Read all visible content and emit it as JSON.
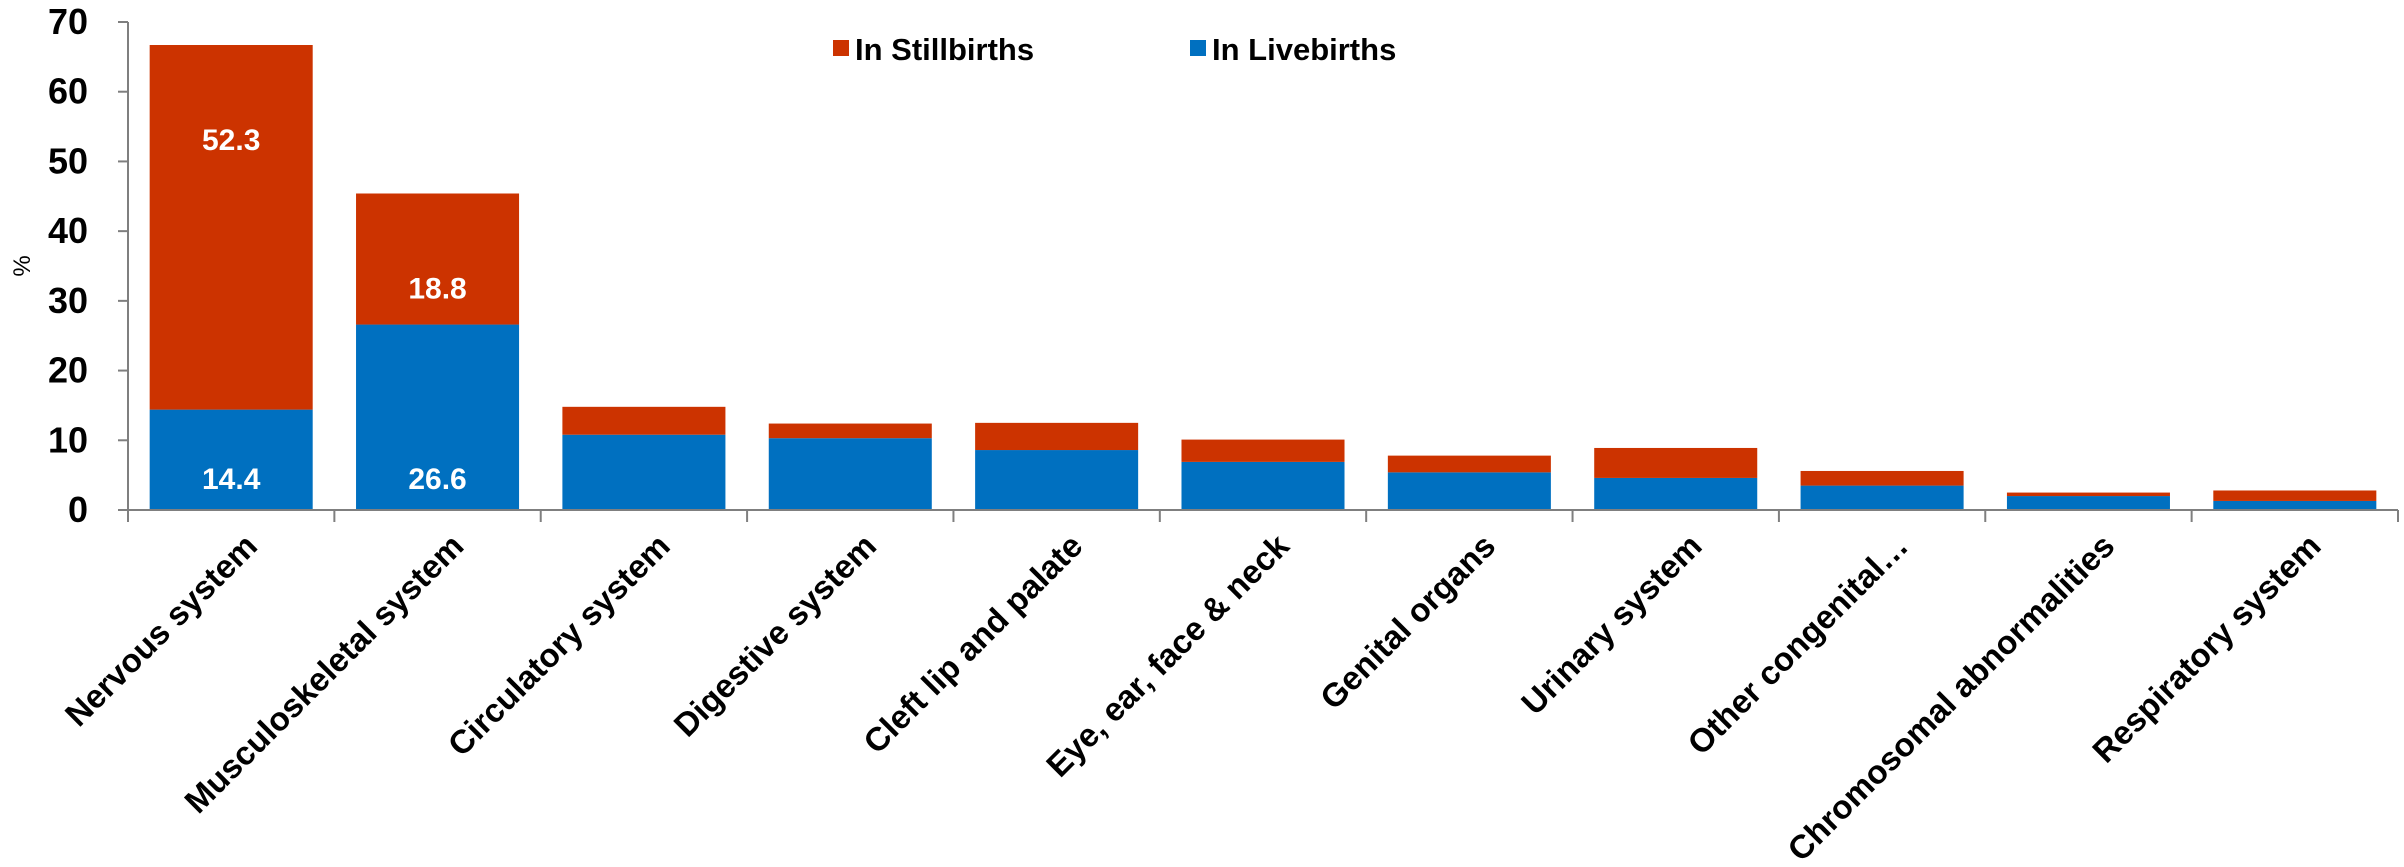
{
  "chart_data": {
    "type": "bar",
    "stacked": true,
    "ylabel": "%",
    "ylim": [
      0,
      70
    ],
    "yticks": [
      0,
      10,
      20,
      30,
      40,
      50,
      60,
      70
    ],
    "grid": false,
    "legend_position": "top-center",
    "categories": [
      "Nervous system",
      "Musculoskeletal system",
      "Circulatory system",
      "Digestive system",
      "Cleft lip and palate",
      "Eye, ear, face & neck",
      "Genital organs",
      "Urinary system",
      "Other congenital…",
      "Chromosomal abnormalities",
      "Respiratory system"
    ],
    "series": [
      {
        "name": "In Livebirths",
        "color": "#0070C0",
        "values": [
          14.4,
          26.6,
          10.8,
          10.3,
          8.6,
          6.9,
          5.4,
          4.6,
          3.5,
          2.0,
          1.3
        ],
        "labels": [
          "14.4",
          "26.6",
          "",
          "",
          "",
          "",
          "",
          "",
          "",
          "",
          ""
        ]
      },
      {
        "name": "In Stillbirths",
        "color": "#CC3300",
        "values": [
          52.3,
          18.8,
          4.0,
          2.1,
          3.9,
          3.2,
          2.4,
          4.3,
          2.1,
          0.5,
          1.5
        ],
        "labels": [
          "52.3",
          "18.8",
          "",
          "",
          "",
          "",
          "",
          "",
          "",
          "",
          ""
        ]
      }
    ],
    "legend_order": [
      "In Stillbirths",
      "In Livebirths"
    ]
  }
}
